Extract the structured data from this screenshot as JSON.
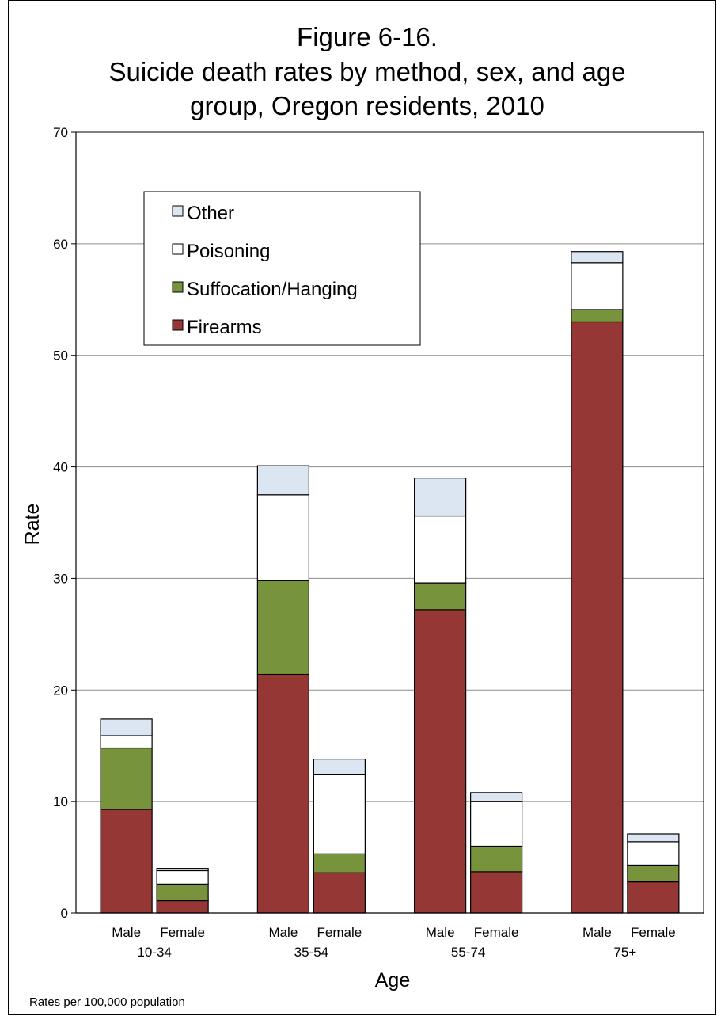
{
  "chart_data": {
    "type": "bar",
    "stacked": true,
    "title_lines": [
      "Figure 6-16.",
      "Suicide death rates by method, sex, and age",
      "group, Oregon residents, 2010"
    ],
    "xlabel": "Age",
    "ylabel": "Rate",
    "note": "Rates per 100,000 population",
    "ylim": [
      0,
      70
    ],
    "yticks": [
      "0",
      "10",
      "20",
      "30",
      "40",
      "50",
      "60",
      "70"
    ],
    "grid": true,
    "legend_position": "top-left",
    "groups": [
      "10-34",
      "35-54",
      "55-74",
      "75+"
    ],
    "categories": [
      "Male",
      "Female",
      "Male",
      "Female",
      "Male",
      "Female",
      "Male",
      "Female"
    ],
    "series": [
      {
        "name": "Firearms",
        "color": "#953735",
        "values": [
          9.3,
          1.1,
          21.4,
          3.6,
          27.2,
          3.7,
          53.0,
          2.8
        ]
      },
      {
        "name": "Suffocation/Hanging",
        "color": "#77933c",
        "values": [
          5.5,
          1.5,
          8.4,
          1.7,
          2.4,
          2.3,
          1.1,
          1.5
        ]
      },
      {
        "name": "Poisoning",
        "color": "#ffffff",
        "values": [
          1.1,
          1.2,
          7.7,
          7.1,
          6.0,
          4.0,
          4.2,
          2.1
        ]
      },
      {
        "name": "Other",
        "color": "#dce6f2",
        "values": [
          1.5,
          0.2,
          2.6,
          1.4,
          3.4,
          0.8,
          1.0,
          0.7
        ]
      }
    ],
    "legend_order": [
      "Other",
      "Poisoning",
      "Suffocation/Hanging",
      "Firearms"
    ]
  }
}
